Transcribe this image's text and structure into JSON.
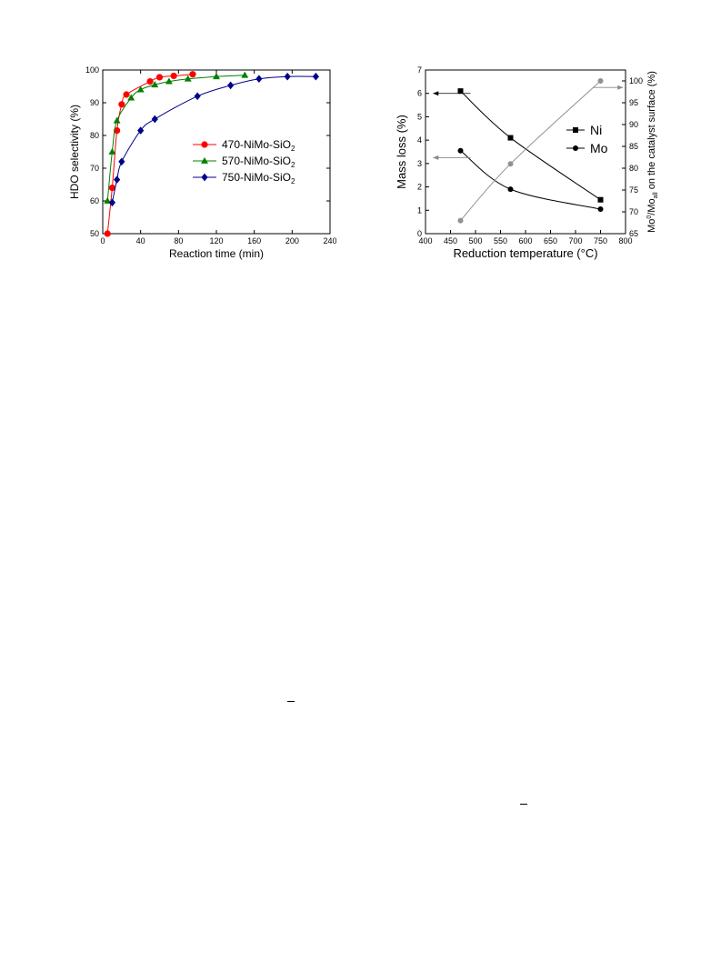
{
  "chart_data": [
    {
      "type": "scatter",
      "title": "",
      "xlabel": "Reaction time (min)",
      "ylabel": "HDO selectivity (%)",
      "xlim": [
        0,
        240
      ],
      "ylim": [
        50,
        100
      ],
      "xticks": [
        0,
        40,
        80,
        120,
        160,
        200,
        240
      ],
      "yticks": [
        50,
        60,
        70,
        80,
        90,
        100
      ],
      "grid": false,
      "legend_position": "center-right",
      "series": [
        {
          "name": "470-NiMo-SiO",
          "name_sub": "2",
          "color": "#ff0000",
          "marker": "circle",
          "x": [
            5,
            10,
            15,
            20,
            25,
            50,
            60,
            75,
            95
          ],
          "y": [
            50,
            64,
            81.5,
            89.5,
            92.5,
            96.5,
            97.8,
            98.2,
            98.7
          ]
        },
        {
          "name": "570-NiMo-SiO",
          "name_sub": "2",
          "color": "#008000",
          "marker": "triangle",
          "x": [
            5,
            10,
            15,
            30,
            40,
            55,
            70,
            90,
            120,
            150
          ],
          "y": [
            60,
            75,
            84.5,
            91.5,
            94,
            95.5,
            96.5,
            97.3,
            98,
            98.4
          ]
        },
        {
          "name": "750-NiMo-SiO",
          "name_sub": "2",
          "color": "#00008b",
          "marker": "diamond",
          "x": [
            10,
            15,
            20,
            40,
            55,
            100,
            135,
            165,
            195,
            225
          ],
          "y": [
            59.5,
            66.5,
            72,
            81.5,
            85,
            92,
            95.3,
            97.3,
            98,
            98
          ]
        }
      ]
    },
    {
      "type": "line",
      "title": "",
      "xlabel": "Reduction temperature (",
      "xlabel_unit": "°C)",
      "ylabel": "Mass loss (%)",
      "y2label_parts": [
        "Mo",
        "0",
        "/Mo",
        "all",
        " on the catalyst surface (%)"
      ],
      "xlim": [
        400,
        800
      ],
      "ylim": [
        0,
        7
      ],
      "y2lim": [
        65,
        102.5
      ],
      "xticks": [
        400,
        450,
        500,
        550,
        600,
        650,
        700,
        750,
        800
      ],
      "yticks": [
        0,
        1,
        2,
        3,
        4,
        5,
        6,
        7
      ],
      "y2ticks": [
        65,
        70,
        75,
        80,
        85,
        90,
        95,
        100
      ],
      "grid": false,
      "legend_position": "top-right",
      "series": [
        {
          "name": "Ni",
          "axis": "left",
          "color": "#000000",
          "marker": "square",
          "x": [
            470,
            570,
            750
          ],
          "y": [
            6.1,
            4.1,
            1.45
          ]
        },
        {
          "name": "Mo",
          "axis": "left",
          "color": "#000000",
          "marker": "circle",
          "x": [
            470,
            570,
            750
          ],
          "y": [
            3.55,
            1.9,
            1.05
          ]
        },
        {
          "name": "",
          "axis": "right",
          "color": "#909090",
          "marker": "circle",
          "x": [
            470,
            570,
            750
          ],
          "y": [
            68,
            81,
            100
          ]
        }
      ]
    }
  ]
}
